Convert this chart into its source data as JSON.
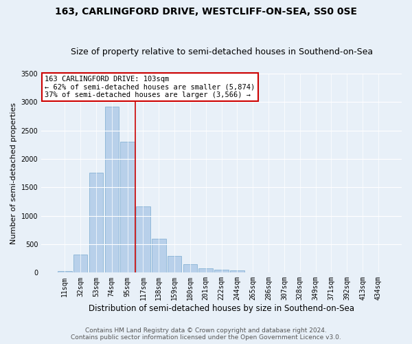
{
  "title": "163, CARLINGFORD DRIVE, WESTCLIFF-ON-SEA, SS0 0SE",
  "subtitle": "Size of property relative to semi-detached houses in Southend-on-Sea",
  "xlabel": "Distribution of semi-detached houses by size in Southend-on-Sea",
  "ylabel": "Number of semi-detached properties",
  "categories": [
    "11sqm",
    "32sqm",
    "53sqm",
    "74sqm",
    "95sqm",
    "117sqm",
    "138sqm",
    "159sqm",
    "180sqm",
    "201sqm",
    "222sqm",
    "244sqm",
    "265sqm",
    "286sqm",
    "307sqm",
    "328sqm",
    "349sqm",
    "371sqm",
    "392sqm",
    "413sqm",
    "434sqm"
  ],
  "values": [
    25,
    320,
    1760,
    2920,
    2300,
    1160,
    600,
    300,
    150,
    75,
    55,
    45,
    0,
    0,
    0,
    0,
    0,
    0,
    0,
    0,
    0
  ],
  "bar_color": "#b8d0ea",
  "bar_edge_color": "#7aabcf",
  "vline_color": "#cc0000",
  "annotation_text": "163 CARLINGFORD DRIVE: 103sqm\n← 62% of semi-detached houses are smaller (5,874)\n37% of semi-detached houses are larger (3,566) →",
  "annotation_box_color": "white",
  "annotation_box_edge_color": "#cc0000",
  "ylim": [
    0,
    3500
  ],
  "yticks": [
    0,
    500,
    1000,
    1500,
    2000,
    2500,
    3000,
    3500
  ],
  "background_color": "#e8f0f8",
  "plot_background_color": "#e8f0f8",
  "footer_line1": "Contains HM Land Registry data © Crown copyright and database right 2024.",
  "footer_line2": "Contains public sector information licensed under the Open Government Licence v3.0.",
  "title_fontsize": 10,
  "subtitle_fontsize": 9,
  "xlabel_fontsize": 8.5,
  "ylabel_fontsize": 8,
  "tick_fontsize": 7,
  "footer_fontsize": 6.5,
  "annot_fontsize": 7.5
}
